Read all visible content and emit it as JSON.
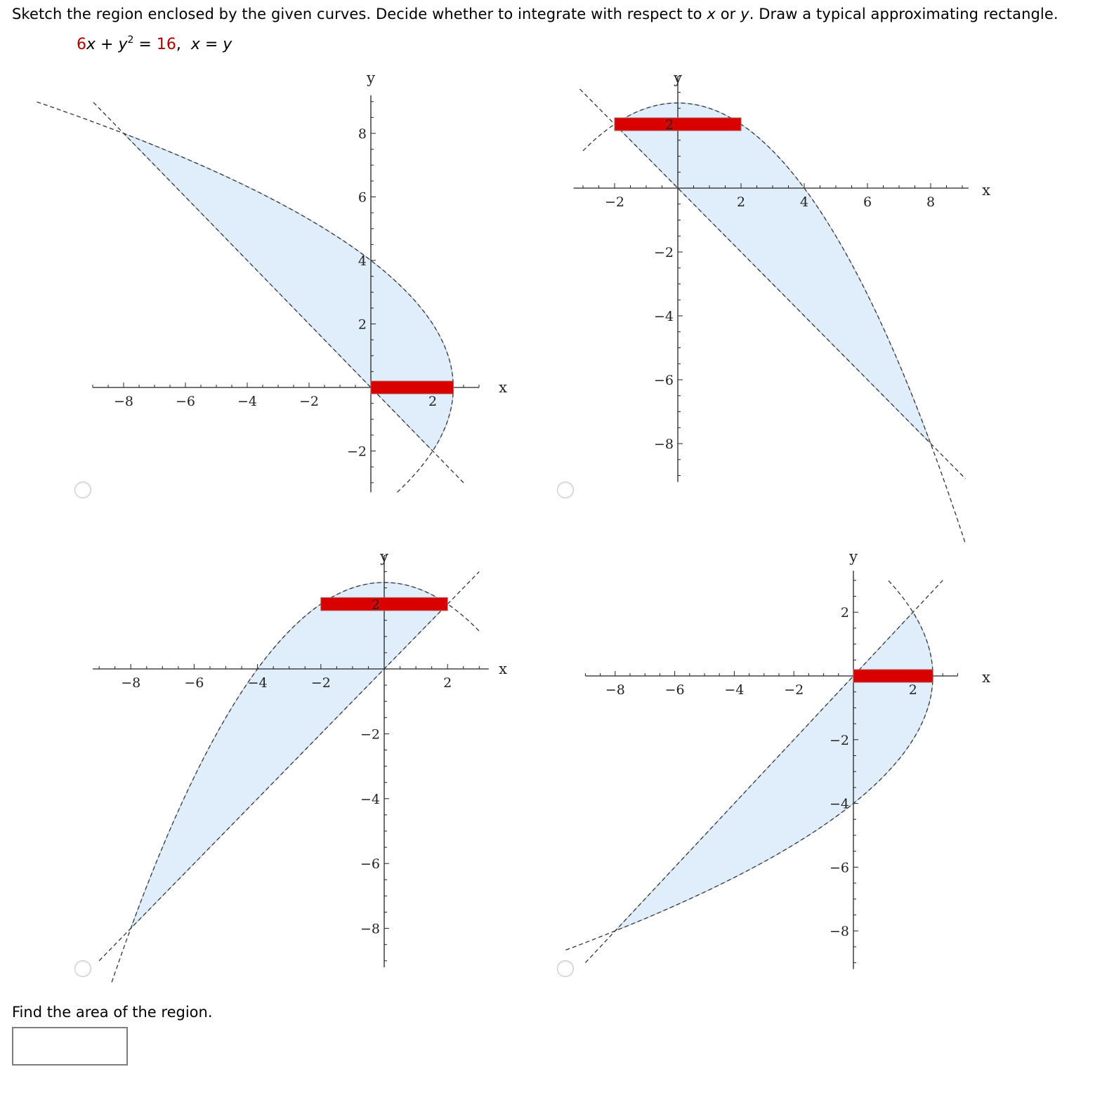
{
  "prompt": {
    "part1": "Sketch the region enclosed by the given curves. Decide whether to integrate with respect to ",
    "var_x": "x",
    "part2": " or ",
    "var_y": "y",
    "part3": ". Draw a typical approximating rectangle."
  },
  "equation": {
    "coef": "6",
    "x": "x",
    "plus": " + ",
    "y": "y",
    "exp": "2",
    "eq": " = ",
    "rhs": "16",
    "sep": ",  ",
    "eq2_lhs": "x",
    "eq2_op": " = ",
    "eq2_rhs": "y"
  },
  "colors": {
    "region_fill": "#e0eefc",
    "region_edge": "#a9bfd4",
    "rectangle": "#d90000",
    "curve": "#333333",
    "axis": "#222222",
    "equation_accent": "#b00000"
  },
  "chart_data": [
    {
      "type": "region-plot",
      "id": "option-1",
      "xlabel": "x",
      "ylabel": "y",
      "curves": [
        "x = (16 - y^2)/6",
        "x = -y"
      ],
      "intersections": [
        [
          -8,
          8
        ],
        [
          2,
          -2
        ]
      ],
      "x_ticks": [
        -8,
        -6,
        -4,
        -2,
        2
      ],
      "y_ticks": [
        -2,
        2,
        4,
        6,
        8
      ],
      "xlim": [
        -9,
        3.5
      ],
      "ylim": [
        -3.3,
        9.2
      ],
      "rectangle": {
        "orientation": "horizontal",
        "x": [
          0,
          2.67
        ],
        "y": [
          -0.2,
          0.2
        ]
      }
    },
    {
      "type": "region-plot",
      "id": "option-2",
      "xlabel": "x",
      "ylabel": "y",
      "curves": [
        "y = (16 - x^2)/6",
        "y = -x"
      ],
      "intersections": [
        [
          -2,
          2
        ],
        [
          8,
          -8
        ]
      ],
      "x_ticks": [
        -2,
        2,
        4,
        6,
        8
      ],
      "y_ticks": [
        -8,
        -6,
        -4,
        -2,
        2
      ],
      "xlim": [
        -3.3,
        9.2
      ],
      "ylim": [
        -9.2,
        3.5
      ],
      "rectangle": {
        "orientation": "horizontal",
        "x": [
          -2,
          2
        ],
        "y": [
          1.8,
          2.2
        ]
      }
    },
    {
      "type": "region-plot",
      "id": "option-3",
      "xlabel": "x",
      "ylabel": "y",
      "curves": [
        "y = (16 - x^2)/6",
        "y = x"
      ],
      "intersections": [
        [
          2,
          2
        ],
        [
          -8,
          -8
        ]
      ],
      "x_ticks": [
        -8,
        -6,
        -4,
        -2,
        2
      ],
      "y_ticks": [
        -8,
        -6,
        -4,
        -2,
        2
      ],
      "xlim": [
        -9.2,
        3.3
      ],
      "ylim": [
        -9.2,
        3.5
      ],
      "rectangle": {
        "orientation": "horizontal",
        "x": [
          -2,
          2
        ],
        "y": [
          1.8,
          2.2
        ]
      }
    },
    {
      "type": "region-plot",
      "id": "option-4",
      "xlabel": "x",
      "ylabel": "y",
      "curves": [
        "x = (16 - y^2)/6",
        "x = y"
      ],
      "intersections": [
        [
          2,
          2
        ],
        [
          -8,
          -8
        ]
      ],
      "x_ticks": [
        -8,
        -6,
        -4,
        -2,
        2
      ],
      "y_ticks": [
        -8,
        -6,
        -4,
        -2,
        2
      ],
      "xlim": [
        -9,
        3.5
      ],
      "ylim": [
        -9.2,
        3.3
      ],
      "rectangle": {
        "orientation": "horizontal",
        "x": [
          0,
          2.67
        ],
        "y": [
          -0.2,
          0.2
        ]
      }
    }
  ],
  "options": [
    {
      "id": "option-1",
      "selected": false
    },
    {
      "id": "option-2",
      "selected": false
    },
    {
      "id": "option-3",
      "selected": false
    },
    {
      "id": "option-4",
      "selected": false
    }
  ],
  "area_question": "Find the area of the region.",
  "area_answer": {
    "value": "",
    "placeholder": ""
  }
}
